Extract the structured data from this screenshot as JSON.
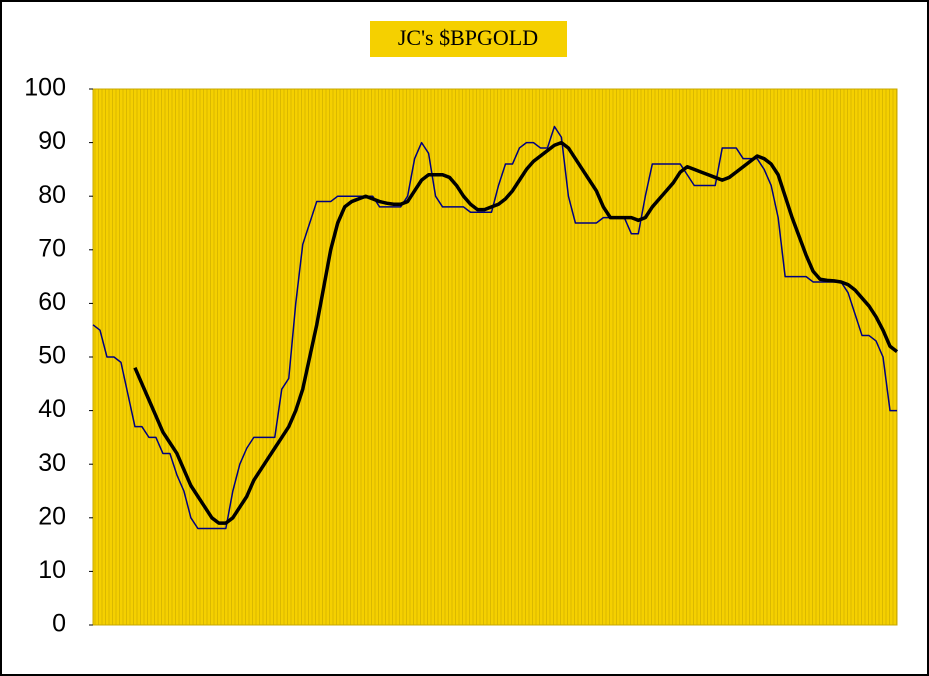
{
  "chart_data": {
    "type": "line",
    "title": "JC's $BPGOLD",
    "ylim": [
      0,
      100
    ],
    "yticks": [
      0,
      10,
      20,
      30,
      40,
      50,
      60,
      70,
      80,
      90,
      100
    ],
    "background": "#f5d000",
    "series": [
      {
        "color": "#000080",
        "width": 1.5,
        "values": [
          56,
          55,
          50,
          50,
          49,
          43,
          37,
          37,
          35,
          35,
          32,
          32,
          28,
          25,
          20,
          18,
          18,
          18,
          18,
          18,
          25,
          30,
          33,
          35,
          35,
          35,
          35,
          44,
          46,
          60,
          71,
          75,
          79,
          79,
          79,
          80,
          80,
          80,
          80,
          80,
          80,
          78,
          78,
          78,
          78,
          80,
          87,
          90,
          88,
          80,
          78,
          78,
          78,
          78,
          77,
          77,
          77,
          77,
          82,
          86,
          86,
          89,
          90,
          90,
          89,
          89,
          93,
          91,
          80,
          75,
          75,
          75,
          75,
          76,
          76,
          76,
          76,
          73,
          73,
          80,
          86,
          86,
          86,
          86,
          86,
          84,
          82,
          82,
          82,
          82,
          89,
          89,
          89,
          87,
          87,
          87,
          85,
          82,
          76,
          65,
          65,
          65,
          65,
          64,
          64,
          64,
          64,
          64,
          62,
          58,
          54,
          54,
          53,
          50,
          40,
          40
        ]
      },
      {
        "color": "#000000",
        "width": 3.5,
        "values": [
          null,
          null,
          null,
          null,
          null,
          null,
          48,
          45,
          42,
          39,
          36,
          34,
          32,
          29,
          26,
          24,
          22,
          20,
          19,
          19,
          20,
          22,
          24,
          27,
          29,
          31,
          33,
          35,
          37,
          40,
          44,
          50,
          56,
          63,
          70,
          75,
          78,
          79,
          79.5,
          80,
          79.5,
          79,
          78.7,
          78.5,
          78.5,
          79,
          81,
          83,
          84,
          84,
          84,
          83.5,
          82,
          80,
          78.5,
          77.5,
          77.5,
          78,
          78.5,
          79.5,
          81,
          83,
          85,
          86.5,
          87.5,
          88.5,
          89.5,
          90,
          89,
          87,
          85,
          83,
          81,
          78,
          76,
          76,
          76,
          76,
          75.5,
          76,
          78,
          79.5,
          81,
          82.5,
          84.5,
          85.5,
          85,
          84.5,
          84,
          83.5,
          83,
          83.5,
          84.5,
          85.5,
          86.5,
          87.5,
          87,
          86,
          84,
          80,
          76,
          72.5,
          69,
          66,
          64.5,
          64.3,
          64.2,
          64,
          63.5,
          62.5,
          61,
          59.5,
          57.5,
          55,
          52,
          51
        ]
      }
    ]
  }
}
